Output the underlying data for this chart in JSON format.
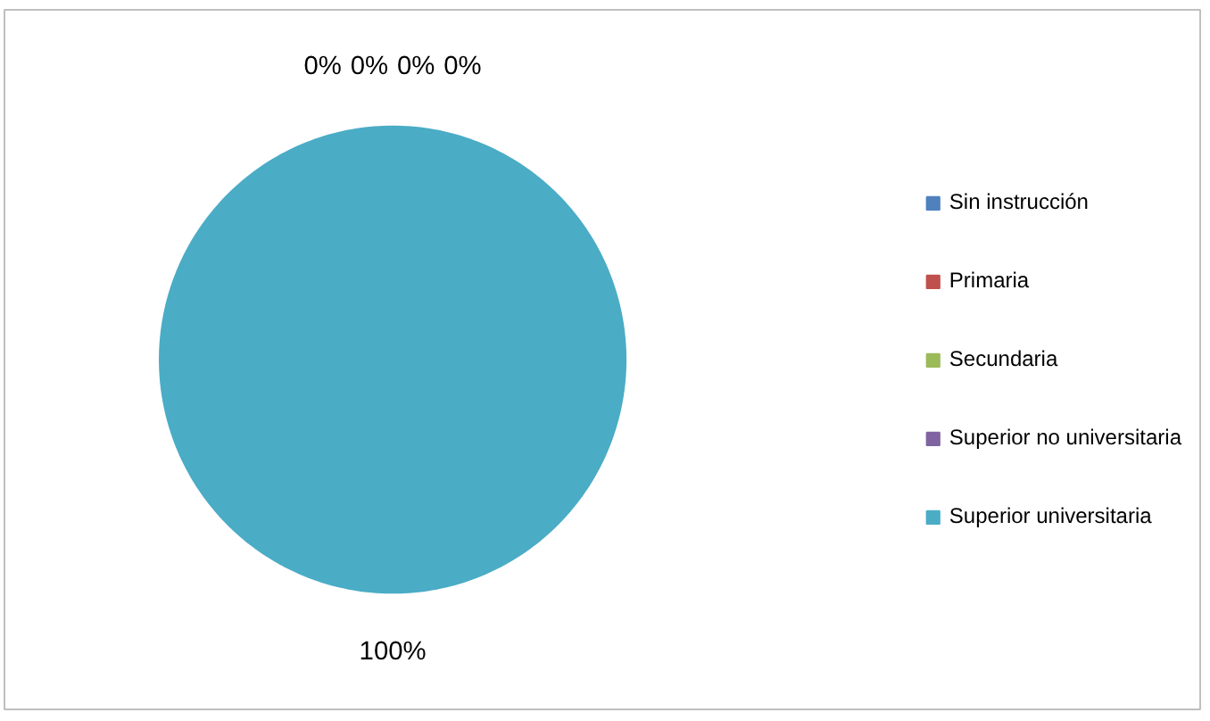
{
  "chart_data": {
    "type": "pie",
    "categories": [
      "Sin instrucción",
      "Primaria",
      "Secundaria",
      "Superior no universitaria",
      "Superior universitaria"
    ],
    "values": [
      0,
      0,
      0,
      0,
      100
    ],
    "colors": [
      "#4f81bd",
      "#c0504d",
      "#9bbb59",
      "#8064a2",
      "#4bacc6"
    ],
    "value_labels": [
      "0%",
      "0%",
      "0%",
      "0%",
      "100%"
    ],
    "legend": "right"
  }
}
